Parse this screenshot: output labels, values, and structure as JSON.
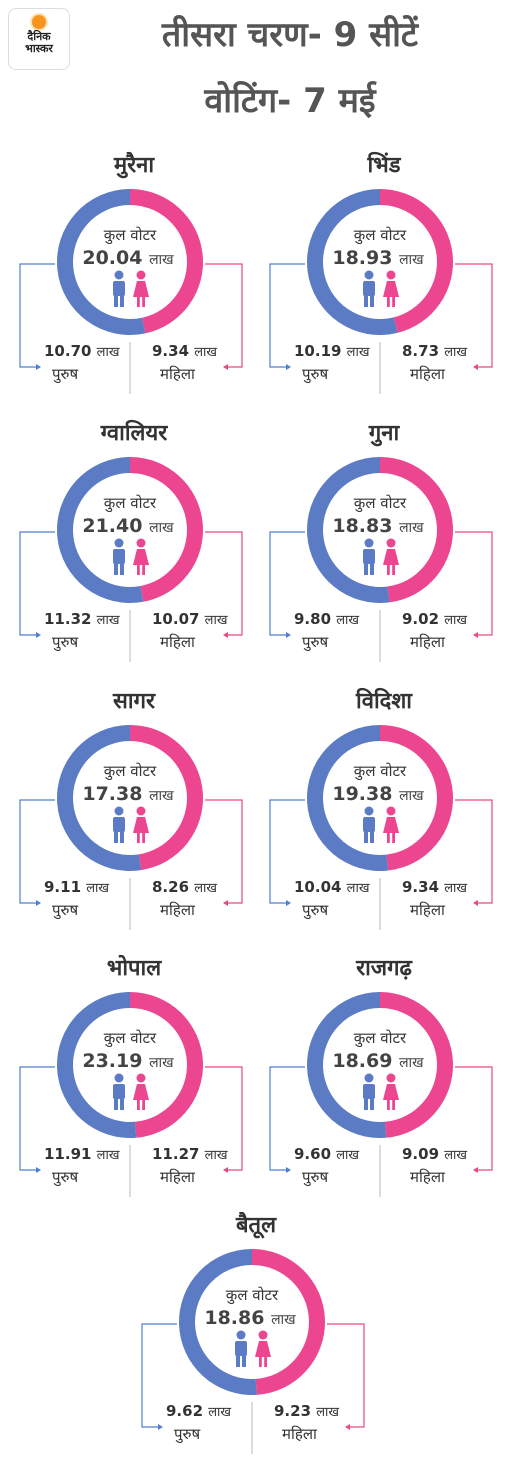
{
  "brand": {
    "logo_line1": "दैनिक",
    "logo_line2": "भास्कर"
  },
  "header": {
    "title_line1": "तीसरा चरण- 9 सीटें",
    "title_line2": "वोटिंग- 7 मई"
  },
  "labels": {
    "total": "कुल वोटर",
    "unit": "लाख",
    "male": "पुरुष",
    "female": "महिला"
  },
  "colors": {
    "male": "#5b7bc4",
    "female": "#ec4690",
    "male_line": "#4f7fd0",
    "female_line": "#e9497f"
  },
  "icons": {
    "male": "male-person-icon",
    "female": "female-person-icon"
  },
  "chart_data": {
    "type": "pie",
    "unit": "लाख",
    "constituencies": [
      {
        "name": "मुरैना",
        "total": "20.04",
        "male": "10.70",
        "female": "9.34"
      },
      {
        "name": "भिंड",
        "total": "18.93",
        "male": "10.19",
        "female": "8.73"
      },
      {
        "name": "ग्वालियर",
        "total": "21.40",
        "male": "11.32",
        "female": "10.07"
      },
      {
        "name": "गुना",
        "total": "18.83",
        "male": "9.80",
        "female": "9.02"
      },
      {
        "name": "सागर",
        "total": "17.38",
        "male": "9.11",
        "female": "8.26"
      },
      {
        "name": "विदिशा",
        "total": "19.38",
        "male": "10.04",
        "female": "9.34"
      },
      {
        "name": "भोपाल",
        "total": "23.19",
        "male": "11.91",
        "female": "11.27"
      },
      {
        "name": "राजगढ़",
        "total": "18.69",
        "male": "9.60",
        "female": "9.09"
      },
      {
        "name": "बैतूल",
        "total": "18.86",
        "male": "9.62",
        "female": "9.23"
      }
    ]
  }
}
